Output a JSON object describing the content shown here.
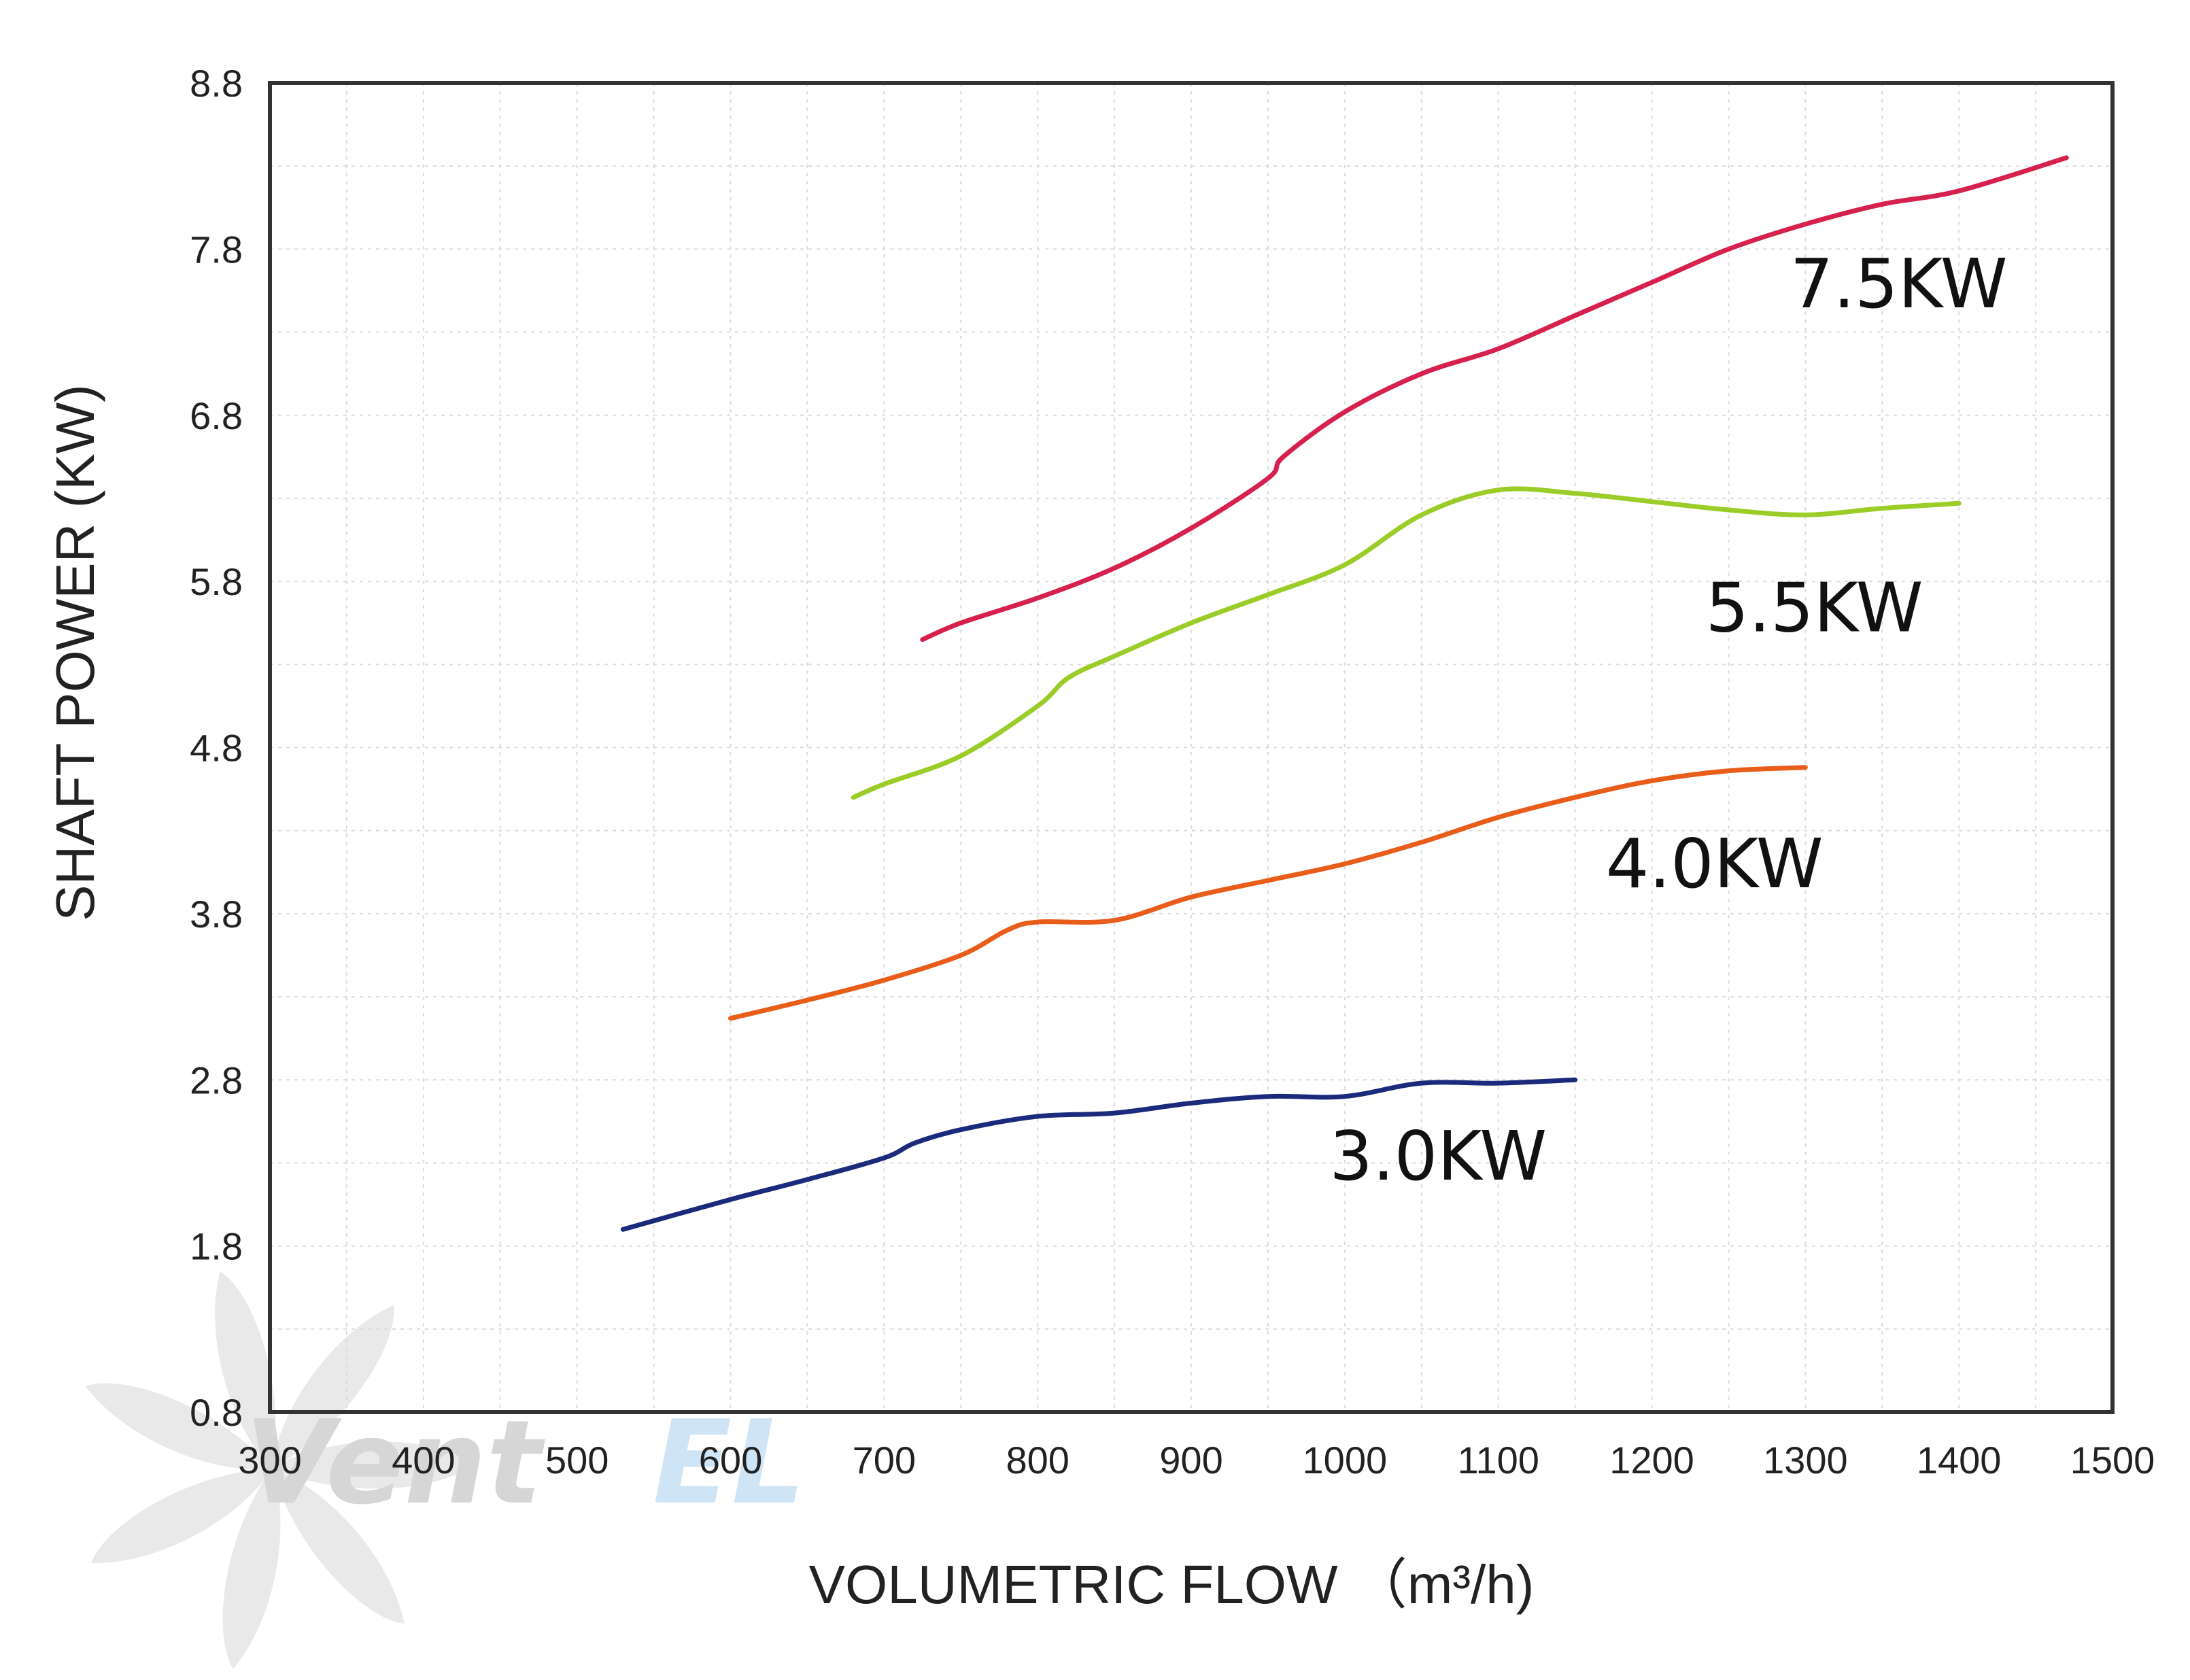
{
  "chart_data": {
    "type": "line",
    "xlabel": "VOLUMETRIC FLOW （m³/h)",
    "ylabel": "SHAFT POWER (KW)",
    "xlim": [
      300,
      1500
    ],
    "ylim": [
      0.8,
      8.8
    ],
    "x_ticks": [
      300,
      400,
      500,
      600,
      700,
      800,
      900,
      1000,
      1100,
      1200,
      1300,
      1400,
      1500
    ],
    "y_ticks": [
      "0.8",
      "1.8",
      "2.8",
      "3.8",
      "4.8",
      "5.8",
      "6.8",
      "7.8",
      "8.8"
    ],
    "grid": true,
    "legend": "inline labels",
    "series": [
      {
        "name": "3.0KW",
        "color": "#1b2a7a",
        "label_pos": [
          990,
          2.2
        ],
        "points": [
          [
            530,
            1.9
          ],
          [
            600,
            2.08
          ],
          [
            650,
            2.2
          ],
          [
            700,
            2.33
          ],
          [
            720,
            2.42
          ],
          [
            750,
            2.5
          ],
          [
            800,
            2.58
          ],
          [
            850,
            2.6
          ],
          [
            900,
            2.66
          ],
          [
            950,
            2.7
          ],
          [
            1000,
            2.7
          ],
          [
            1050,
            2.78
          ],
          [
            1100,
            2.78
          ],
          [
            1150,
            2.8
          ]
        ]
      },
      {
        "name": "4.0KW",
        "color": "#e85d1a",
        "label_pos": [
          1170,
          3.96
        ],
        "points": [
          [
            600,
            3.17
          ],
          [
            650,
            3.28
          ],
          [
            700,
            3.4
          ],
          [
            750,
            3.55
          ],
          [
            780,
            3.7
          ],
          [
            800,
            3.75
          ],
          [
            850,
            3.76
          ],
          [
            900,
            3.9
          ],
          [
            950,
            4.0
          ],
          [
            1000,
            4.1
          ],
          [
            1050,
            4.23
          ],
          [
            1100,
            4.38
          ],
          [
            1150,
            4.5
          ],
          [
            1200,
            4.6
          ],
          [
            1250,
            4.66
          ],
          [
            1300,
            4.68
          ]
        ]
      },
      {
        "name": "5.5KW",
        "color": "#9ccc28",
        "label_pos": [
          1235,
          5.5
        ],
        "points": [
          [
            680,
            4.5
          ],
          [
            700,
            4.58
          ],
          [
            750,
            4.75
          ],
          [
            800,
            5.05
          ],
          [
            820,
            5.22
          ],
          [
            850,
            5.35
          ],
          [
            900,
            5.55
          ],
          [
            950,
            5.72
          ],
          [
            1000,
            5.9
          ],
          [
            1050,
            6.2
          ],
          [
            1100,
            6.35
          ],
          [
            1150,
            6.33
          ],
          [
            1200,
            6.28
          ],
          [
            1250,
            6.23
          ],
          [
            1300,
            6.2
          ],
          [
            1350,
            6.24
          ],
          [
            1400,
            6.27
          ]
        ]
      },
      {
        "name": "7.5KW",
        "color": "#d6204e",
        "label_pos": [
          1290,
          7.45
        ],
        "points": [
          [
            725,
            5.45
          ],
          [
            750,
            5.55
          ],
          [
            800,
            5.7
          ],
          [
            850,
            5.88
          ],
          [
            900,
            6.12
          ],
          [
            950,
            6.42
          ],
          [
            960,
            6.55
          ],
          [
            1000,
            6.82
          ],
          [
            1050,
            7.05
          ],
          [
            1100,
            7.2
          ],
          [
            1150,
            7.4
          ],
          [
            1200,
            7.6
          ],
          [
            1250,
            7.8
          ],
          [
            1300,
            7.95
          ],
          [
            1350,
            8.07
          ],
          [
            1400,
            8.15
          ],
          [
            1470,
            8.35
          ]
        ]
      }
    ]
  },
  "watermark": {
    "text_grey": "Vent",
    "text_blue": "EL"
  }
}
